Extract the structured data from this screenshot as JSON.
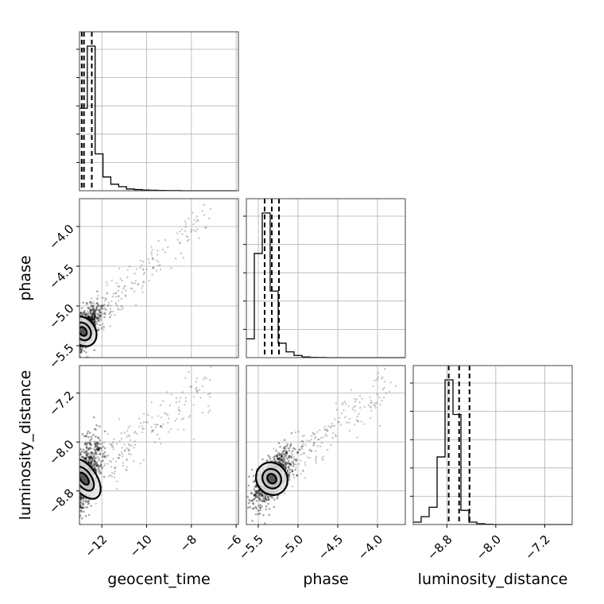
{
  "chart_data": {
    "type": "corner",
    "parameters": [
      "geocent_time",
      "phase",
      "luminosity_distance"
    ],
    "axis_labels": {
      "bottom": [
        "geocent_time",
        "phase",
        "luminosity_distance"
      ],
      "left": [
        "phase",
        "luminosity_distance"
      ]
    },
    "ranges": {
      "geocent_time": [
        -13.0,
        -5.9
      ],
      "phase": [
        -5.65,
        -3.65
      ],
      "luminosity_distance": [
        -9.35,
        -6.75
      ]
    },
    "ticks": {
      "geocent_time": [
        -12,
        -10,
        -8,
        -6
      ],
      "phase": [
        -5.5,
        -5.0,
        -4.5,
        -4.0
      ],
      "luminosity_distance": [
        -8.8,
        -8.0,
        -7.2
      ]
    },
    "tick_labels": {
      "geocent_time": [
        "−12",
        "−10",
        "−8",
        "−6"
      ],
      "phase": [
        "−5.5",
        "−5.0",
        "−4.5",
        "−4.0"
      ],
      "luminosity_distance": [
        "−8.8",
        "−8.0",
        "−7.2"
      ]
    },
    "quantiles": {
      "geocent_time": [
        -12.9,
        -12.8,
        -12.45
      ],
      "phase": [
        -5.42,
        -5.33,
        -5.24
      ],
      "luminosity_distance": [
        -8.77,
        -8.6,
        -8.43
      ]
    },
    "histograms": {
      "geocent_time": {
        "edges": [
          -13.0,
          -12.65,
          -12.3,
          -11.95,
          -11.6,
          -11.25,
          -10.9,
          -10.55,
          -10.2,
          -9.85,
          -9.5,
          -9.15,
          -8.8,
          -8.45,
          -8.1,
          -7.75,
          -7.4,
          -7.05,
          -6.7,
          -6.35,
          -6.0
        ],
        "counts": [
          570,
          1000,
          255,
          95,
          45,
          28,
          12,
          8,
          5,
          3,
          2,
          1,
          1,
          0,
          0,
          0,
          0,
          0,
          0,
          0
        ]
      },
      "phase": {
        "edges": [
          -5.65,
          -5.55,
          -5.45,
          -5.35,
          -5.25,
          -5.15,
          -5.05,
          -4.95,
          -4.85,
          -4.75,
          -4.65,
          -4.55,
          -4.45,
          -4.35,
          -4.25,
          -4.15,
          -4.05,
          -3.95,
          -3.85,
          -3.75,
          -3.65
        ],
        "counts": [
          130,
          720,
          1000,
          460,
          100,
          40,
          15,
          5,
          2,
          1,
          0,
          0,
          0,
          0,
          0,
          0,
          0,
          0,
          0,
          0
        ]
      },
      "luminosity_distance": {
        "edges": [
          -9.35,
          -9.22,
          -9.09,
          -8.96,
          -8.83,
          -8.7,
          -8.57,
          -8.44,
          -8.31,
          -8.18,
          -8.05,
          -7.92,
          -7.79,
          -7.66,
          -7.53,
          -7.4,
          -7.27,
          -7.14,
          -7.01,
          -6.88,
          -6.75
        ],
        "counts": [
          15,
          50,
          110,
          430,
          920,
          700,
          90,
          15,
          5,
          2,
          0,
          0,
          0,
          0,
          0,
          0,
          0,
          0,
          0,
          0
        ]
      }
    },
    "density_2d": [
      {
        "x": "geocent_time",
        "y": "phase",
        "center": [
          -12.85,
          -5.32
        ],
        "spread": [
          0.35,
          0.16
        ],
        "tail_to": [
          -7.2,
          -3.8
        ]
      },
      {
        "x": "geocent_time",
        "y": "luminosity_distance",
        "center": [
          -12.8,
          -8.6
        ],
        "spread": [
          0.35,
          0.3
        ],
        "tail_to": [
          -7.0,
          -7.0
        ]
      },
      {
        "x": "phase",
        "y": "luminosity_distance",
        "center": [
          -5.33,
          -8.6
        ],
        "spread": [
          0.12,
          0.22
        ],
        "tail_to": [
          -3.8,
          -7.0
        ]
      }
    ]
  }
}
